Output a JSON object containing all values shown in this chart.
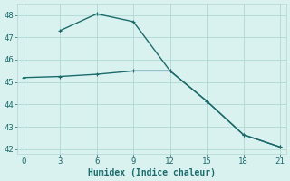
{
  "line1_x": [
    0,
    3,
    6,
    9,
    12,
    15,
    18,
    21
  ],
  "line1_y": [
    45.2,
    45.25,
    45.35,
    45.5,
    45.5,
    44.15,
    42.65,
    42.1
  ],
  "line2_x": [
    3,
    6,
    9,
    12,
    15,
    18,
    21
  ],
  "line2_y": [
    47.3,
    48.05,
    47.7,
    45.5,
    44.15,
    42.65,
    42.1
  ],
  "line_color": "#1a6b6b",
  "bg_color": "#d9f2f0",
  "grid_color": "#b0d8d4",
  "xlabel": "Humidex (Indice chaleur)",
  "xlim": [
    -0.5,
    21.5
  ],
  "ylim": [
    41.8,
    48.5
  ],
  "xticks": [
    0,
    3,
    6,
    9,
    12,
    15,
    18,
    21
  ],
  "yticks": [
    42,
    43,
    44,
    45,
    46,
    47,
    48
  ],
  "font_color": "#1a6b6b",
  "markersize": 2.5,
  "linewidth": 1.0,
  "tick_fontsize": 6.5,
  "xlabel_fontsize": 7.0
}
